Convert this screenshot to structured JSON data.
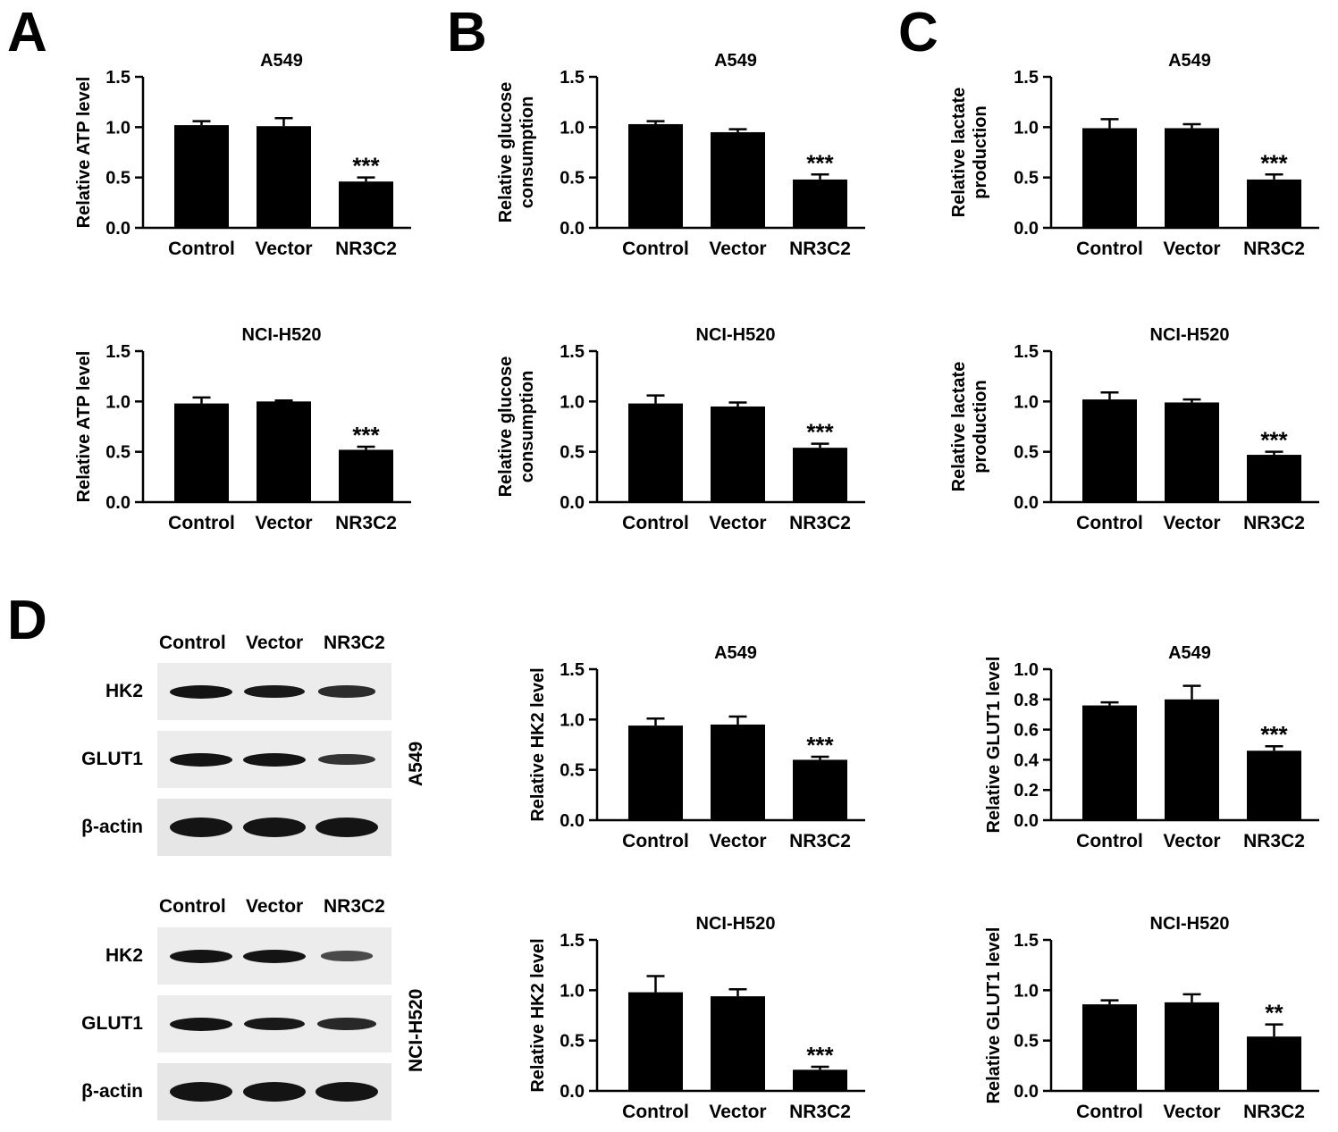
{
  "panel_letters": [
    "A",
    "B",
    "C",
    "D"
  ],
  "chart_data": [
    {
      "type": "bar",
      "panel": "A",
      "title": "A549",
      "ylabel": "Relative ATP level",
      "categories": [
        "Control",
        "Vector",
        "NR3C2"
      ],
      "values": [
        1.02,
        1.01,
        0.46
      ],
      "errors": [
        0.04,
        0.08,
        0.04
      ],
      "significance": [
        "",
        "",
        "***"
      ],
      "ylim": [
        0,
        1.5
      ],
      "yticks": [
        "0.0",
        "0.5",
        "1.0",
        "1.5"
      ]
    },
    {
      "type": "bar",
      "panel": "B",
      "title": "A549",
      "ylabel": "Relative glucose consumption",
      "categories": [
        "Control",
        "Vector",
        "NR3C2"
      ],
      "values": [
        1.03,
        0.95,
        0.48
      ],
      "errors": [
        0.03,
        0.03,
        0.05
      ],
      "significance": [
        "",
        "",
        "***"
      ],
      "ylim": [
        0,
        1.5
      ],
      "yticks": [
        "0.0",
        "0.5",
        "1.0",
        "1.5"
      ]
    },
    {
      "type": "bar",
      "panel": "C",
      "title": "A549",
      "ylabel": "Relative lactate production",
      "categories": [
        "Control",
        "Vector",
        "NR3C2"
      ],
      "values": [
        0.99,
        0.99,
        0.48
      ],
      "errors": [
        0.09,
        0.04,
        0.05
      ],
      "significance": [
        "",
        "",
        "***"
      ],
      "ylim": [
        0,
        1.5
      ],
      "yticks": [
        "0.0",
        "0.5",
        "1.0",
        "1.5"
      ]
    },
    {
      "type": "bar",
      "panel": "A",
      "title": "NCI-H520",
      "ylabel": "Relative ATP level",
      "categories": [
        "Control",
        "Vector",
        "NR3C2"
      ],
      "values": [
        0.98,
        1.0,
        0.52
      ],
      "errors": [
        0.06,
        0.01,
        0.03
      ],
      "significance": [
        "",
        "",
        "***"
      ],
      "ylim": [
        0,
        1.5
      ],
      "yticks": [
        "0.0",
        "0.5",
        "1.0",
        "1.5"
      ]
    },
    {
      "type": "bar",
      "panel": "B",
      "title": "NCI-H520",
      "ylabel": "Relative glucose consumption",
      "categories": [
        "Control",
        "Vector",
        "NR3C2"
      ],
      "values": [
        0.98,
        0.95,
        0.54
      ],
      "errors": [
        0.08,
        0.04,
        0.04
      ],
      "significance": [
        "",
        "",
        "***"
      ],
      "ylim": [
        0,
        1.5
      ],
      "yticks": [
        "0.0",
        "0.5",
        "1.0",
        "1.5"
      ]
    },
    {
      "type": "bar",
      "panel": "C",
      "title": "NCI-H520",
      "ylabel": "Relative lactate production",
      "categories": [
        "Control",
        "Vector",
        "NR3C2"
      ],
      "values": [
        1.02,
        0.99,
        0.47
      ],
      "errors": [
        0.07,
        0.03,
        0.03
      ],
      "significance": [
        "",
        "",
        "***"
      ],
      "ylim": [
        0,
        1.5
      ],
      "yticks": [
        "0.0",
        "0.5",
        "1.0",
        "1.5"
      ]
    },
    {
      "type": "bar",
      "panel": "D",
      "title": "A549",
      "ylabel": "Relative HK2 level",
      "categories": [
        "Control",
        "Vector",
        "NR3C2"
      ],
      "values": [
        0.94,
        0.95,
        0.6
      ],
      "errors": [
        0.07,
        0.08,
        0.03
      ],
      "significance": [
        "",
        "",
        "***"
      ],
      "ylim": [
        0,
        1.5
      ],
      "yticks": [
        "0.0",
        "0.5",
        "1.0",
        "1.5"
      ]
    },
    {
      "type": "bar",
      "panel": "D",
      "title": "A549",
      "ylabel": "Relative GLUT1 level",
      "categories": [
        "Control",
        "Vector",
        "NR3C2"
      ],
      "values": [
        0.76,
        0.8,
        0.46
      ],
      "errors": [
        0.02,
        0.09,
        0.03
      ],
      "significance": [
        "",
        "",
        "***"
      ],
      "ylim": [
        0,
        1.0
      ],
      "yticks": [
        "0.0",
        "0.2",
        "0.4",
        "0.6",
        "0.8",
        "1.0"
      ]
    },
    {
      "type": "bar",
      "panel": "D",
      "title": "NCI-H520",
      "ylabel": "Relative HK2 level",
      "categories": [
        "Control",
        "Vector",
        "NR3C2"
      ],
      "values": [
        0.98,
        0.94,
        0.21
      ],
      "errors": [
        0.16,
        0.07,
        0.03
      ],
      "significance": [
        "",
        "",
        "***"
      ],
      "ylim": [
        0,
        1.5
      ],
      "yticks": [
        "0.0",
        "0.5",
        "1.0",
        "1.5"
      ]
    },
    {
      "type": "bar",
      "panel": "D",
      "title": "NCI-H520",
      "ylabel": "Relative GLUT1 level",
      "categories": [
        "Control",
        "Vector",
        "NR3C2"
      ],
      "values": [
        0.86,
        0.88,
        0.54
      ],
      "errors": [
        0.04,
        0.08,
        0.12
      ],
      "significance": [
        "",
        "",
        "**"
      ],
      "ylim": [
        0,
        1.5
      ],
      "yticks": [
        "0.0",
        "0.5",
        "1.0",
        "1.5"
      ]
    }
  ],
  "blots": [
    {
      "cell_line": "A549",
      "lanes": [
        "Control",
        "Vector",
        "NR3C2"
      ],
      "rows": [
        {
          "label": "HK2",
          "band_intensity": [
            1.0,
            0.95,
            0.75
          ]
        },
        {
          "label": "GLUT1",
          "band_intensity": [
            1.0,
            1.0,
            0.7
          ]
        },
        {
          "label": "β-actin",
          "band_intensity": [
            1.0,
            1.0,
            1.0
          ]
        }
      ]
    },
    {
      "cell_line": "NCI-H520",
      "lanes": [
        "Control",
        "Vector",
        "NR3C2"
      ],
      "rows": [
        {
          "label": "HK2",
          "band_intensity": [
            1.0,
            1.0,
            0.45
          ]
        },
        {
          "label": "GLUT1",
          "band_intensity": [
            1.0,
            0.95,
            0.8
          ]
        },
        {
          "label": "β-actin",
          "band_intensity": [
            1.0,
            1.0,
            1.0
          ]
        }
      ]
    }
  ]
}
